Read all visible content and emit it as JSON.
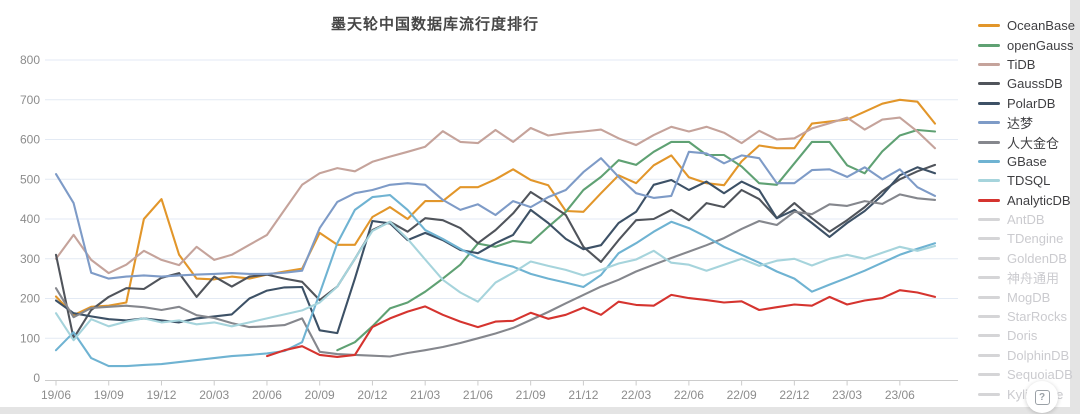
{
  "title": "墨天轮中国数据库流行度排行",
  "help_button": {
    "label": "?"
  },
  "legend": {
    "disabled_swatch_color": "#d5d5d7",
    "disabled_text_color": "#cbcbcf"
  },
  "chart_data": {
    "type": "line",
    "title": "墨天轮中国数据库流行度排行",
    "xlabel": "",
    "ylabel": "",
    "ylim": [
      0,
      800
    ],
    "y_ticks": [
      0,
      100,
      200,
      300,
      400,
      500,
      600,
      700,
      800
    ],
    "grid": "horizontal-only",
    "legend_position": "right",
    "tick_every": 3,
    "x_tick_labels": [
      "19/06",
      "19/09",
      "19/12",
      "20/03",
      "20/06",
      "20/09",
      "20/12",
      "21/03",
      "21/06",
      "21/09",
      "21/12",
      "22/03",
      "22/06",
      "22/09",
      "22/12",
      "23/03",
      "23/06"
    ],
    "x": [
      "19/06",
      "19/07",
      "19/08",
      "19/09",
      "19/10",
      "19/11",
      "19/12",
      "20/01",
      "20/02",
      "20/03",
      "20/04",
      "20/05",
      "20/06",
      "20/07",
      "20/08",
      "20/09",
      "20/10",
      "20/11",
      "20/12",
      "21/01",
      "21/02",
      "21/03",
      "21/04",
      "21/05",
      "21/06",
      "21/07",
      "21/08",
      "21/09",
      "21/10",
      "21/11",
      "21/12",
      "22/01",
      "22/02",
      "22/03",
      "22/04",
      "22/05",
      "22/06",
      "22/07",
      "22/08",
      "22/09",
      "22/10",
      "22/11",
      "22/12",
      "23/01",
      "23/02",
      "23/03",
      "23/04",
      "23/05",
      "23/06",
      "23/07",
      "23/08"
    ],
    "series": [
      {
        "name": "OceanBase",
        "color": "#E2962A",
        "values": [
          205,
          158,
          179,
          182,
          190,
          400,
          450,
          310,
          250,
          248,
          255,
          250,
          260,
          268,
          275,
          365,
          335,
          335,
          405,
          430,
          400,
          445,
          445,
          480,
          480,
          500,
          525,
          498,
          485,
          420,
          418,
          465,
          510,
          490,
          535,
          560,
          505,
          490,
          485,
          545,
          585,
          578,
          578,
          640,
          645,
          650,
          670,
          690,
          700,
          695,
          640
        ]
      },
      {
        "name": "openGauss",
        "color": "#5FA173",
        "values": [
          null,
          null,
          null,
          null,
          null,
          null,
          null,
          null,
          null,
          null,
          null,
          null,
          null,
          null,
          null,
          null,
          70,
          90,
          130,
          175,
          190,
          217,
          250,
          285,
          338,
          330,
          345,
          340,
          380,
          418,
          473,
          506,
          548,
          536,
          569,
          594,
          594,
          561,
          561,
          532,
          490,
          486,
          540,
          594,
          594,
          535,
          515,
          570,
          610,
          624,
          620
        ]
      },
      {
        "name": "TiDB",
        "color": "#C5A39B",
        "values": [
          300,
          360,
          297,
          264,
          285,
          320,
          297,
          284,
          330,
          297,
          310,
          335,
          360,
          423,
          486,
          515,
          528,
          520,
          544,
          557,
          569,
          582,
          621,
          594,
          591,
          624,
          594,
          629,
          610,
          616,
          620,
          625,
          603,
          586,
          611,
          632,
          620,
          632,
          617,
          591,
          622,
          600,
          603,
          628,
          641,
          655,
          625,
          650,
          655,
          620,
          578
        ]
      },
      {
        "name": "GaussDB",
        "color": "#50545B",
        "values": [
          310,
          100,
          171,
          204,
          226,
          224,
          252,
          264,
          204,
          255,
          230,
          255,
          260,
          250,
          242,
          196,
          230,
          300,
          372,
          393,
          368,
          402,
          397,
          377,
          339,
          372,
          414,
          468,
          440,
          410,
          330,
          292,
          347,
          397,
          400,
          423,
          397,
          440,
          430,
          473,
          450,
          402,
          440,
          402,
          368,
          397,
          430,
          470,
          500,
          520,
          536
        ]
      },
      {
        "name": "PolarDB",
        "color": "#3D5166",
        "values": [
          195,
          163,
          155,
          148,
          145,
          150,
          145,
          140,
          150,
          155,
          160,
          200,
          220,
          228,
          229,
          120,
          113,
          250,
          395,
          389,
          347,
          365,
          347,
          322,
          314,
          339,
          360,
          423,
          390,
          350,
          324,
          334,
          390,
          418,
          486,
          498,
          473,
          494,
          465,
          494,
          473,
          402,
          423,
          390,
          355,
          390,
          420,
          460,
          510,
          530,
          515
        ]
      },
      {
        "name": "达梦",
        "color": "#7E9BC7",
        "values": [
          513,
          440,
          265,
          250,
          255,
          258,
          255,
          258,
          260,
          262,
          264,
          262,
          262,
          265,
          270,
          377,
          443,
          465,
          473,
          486,
          490,
          486,
          448,
          423,
          437,
          410,
          445,
          430,
          455,
          473,
          518,
          553,
          506,
          465,
          453,
          458,
          569,
          565,
          540,
          560,
          553,
          490,
          490,
          523,
          525,
          506,
          530,
          500,
          525,
          480,
          458
        ]
      },
      {
        "name": "人大金仓",
        "color": "#85878D",
        "values": [
          226,
          153,
          176,
          179,
          182,
          178,
          171,
          179,
          158,
          151,
          138,
          128,
          130,
          133,
          150,
          66,
          60,
          58,
          56,
          54,
          63,
          70,
          78,
          88,
          100,
          112,
          126,
          146,
          166,
          188,
          209,
          230,
          247,
          268,
          285,
          302,
          318,
          334,
          352,
          375,
          395,
          385,
          418,
          412,
          437,
          433,
          445,
          438,
          462,
          452,
          448
        ]
      },
      {
        "name": "GBase",
        "color": "#6FB3D2",
        "values": [
          70,
          115,
          50,
          30,
          30,
          33,
          35,
          40,
          45,
          50,
          55,
          58,
          62,
          68,
          90,
          213,
          339,
          423,
          455,
          460,
          423,
          372,
          350,
          325,
          302,
          290,
          280,
          262,
          250,
          240,
          229,
          259,
          314,
          339,
          368,
          393,
          377,
          355,
          330,
          310,
          290,
          268,
          250,
          217,
          235,
          252,
          270,
          290,
          310,
          325,
          339
        ]
      },
      {
        "name": "TDSQL",
        "color": "#A6D4DC",
        "values": [
          163,
          95,
          148,
          130,
          142,
          150,
          140,
          145,
          135,
          140,
          130,
          140,
          150,
          160,
          170,
          190,
          230,
          300,
          370,
          393,
          350,
          298,
          247,
          215,
          192,
          240,
          265,
          293,
          282,
          272,
          258,
          272,
          288,
          298,
          320,
          290,
          285,
          270,
          285,
          300,
          282,
          295,
          300,
          283,
          300,
          310,
          300,
          315,
          330,
          320,
          332
        ]
      },
      {
        "name": "AnalyticDB",
        "color": "#D5342F",
        "values": [
          null,
          null,
          null,
          null,
          null,
          null,
          null,
          null,
          null,
          null,
          null,
          null,
          55,
          70,
          80,
          58,
          53,
          58,
          128,
          150,
          167,
          180,
          159,
          142,
          128,
          142,
          144,
          164,
          149,
          159,
          177,
          159,
          192,
          184,
          182,
          209,
          201,
          196,
          190,
          193,
          171,
          178,
          185,
          182,
          204,
          185,
          195,
          201,
          221,
          215,
          204
        ]
      }
    ],
    "inactive_series": [
      "AntDB",
      "TDengine",
      "GoldenDB",
      "神舟通用",
      "MogDB",
      "StarRocks",
      "Doris",
      "DolphinDB",
      "SequoiaDB",
      "Kyligence"
    ],
    "axis_colors": {
      "grid": "#e3eaf4",
      "axis": "#cccccc",
      "tick_label": "#8c8c8c"
    }
  }
}
